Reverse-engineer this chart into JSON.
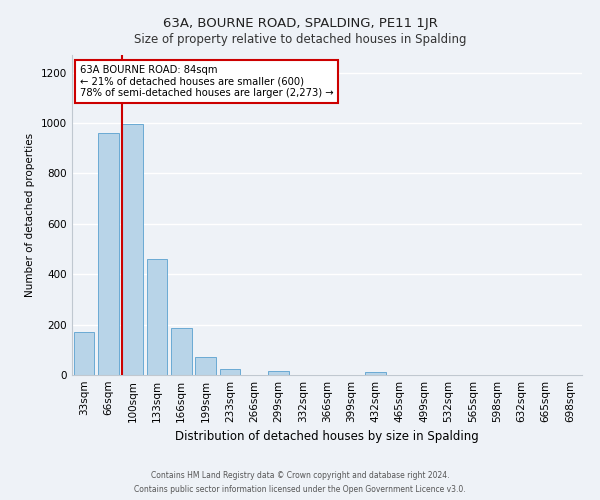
{
  "title": "63A, BOURNE ROAD, SPALDING, PE11 1JR",
  "subtitle": "Size of property relative to detached houses in Spalding",
  "xlabel": "Distribution of detached houses by size in Spalding",
  "ylabel": "Number of detached properties",
  "categories": [
    "33sqm",
    "66sqm",
    "100sqm",
    "133sqm",
    "166sqm",
    "199sqm",
    "233sqm",
    "266sqm",
    "299sqm",
    "332sqm",
    "366sqm",
    "399sqm",
    "432sqm",
    "465sqm",
    "499sqm",
    "532sqm",
    "565sqm",
    "598sqm",
    "632sqm",
    "665sqm",
    "698sqm"
  ],
  "values": [
    170,
    960,
    995,
    460,
    185,
    70,
    22,
    0,
    15,
    0,
    0,
    0,
    10,
    0,
    0,
    0,
    0,
    0,
    0,
    0,
    0
  ],
  "bar_color": "#b8d4e8",
  "bar_edge_color": "#6aaad4",
  "red_line_x": 1.54,
  "annotation_line1": "63A BOURNE ROAD: 84sqm",
  "annotation_line2": "← 21% of detached houses are smaller (600)",
  "annotation_line3": "78% of semi-detached houses are larger (2,273) →",
  "annotation_box_color": "#ffffff",
  "annotation_box_edge": "#cc0000",
  "ylim": [
    0,
    1270
  ],
  "yticks": [
    0,
    200,
    400,
    600,
    800,
    1000,
    1200
  ],
  "footer_line1": "Contains HM Land Registry data © Crown copyright and database right 2024.",
  "footer_line2": "Contains public sector information licensed under the Open Government Licence v3.0.",
  "background_color": "#eef2f7",
  "grid_color": "#ffffff",
  "red_line_color": "#cc0000"
}
